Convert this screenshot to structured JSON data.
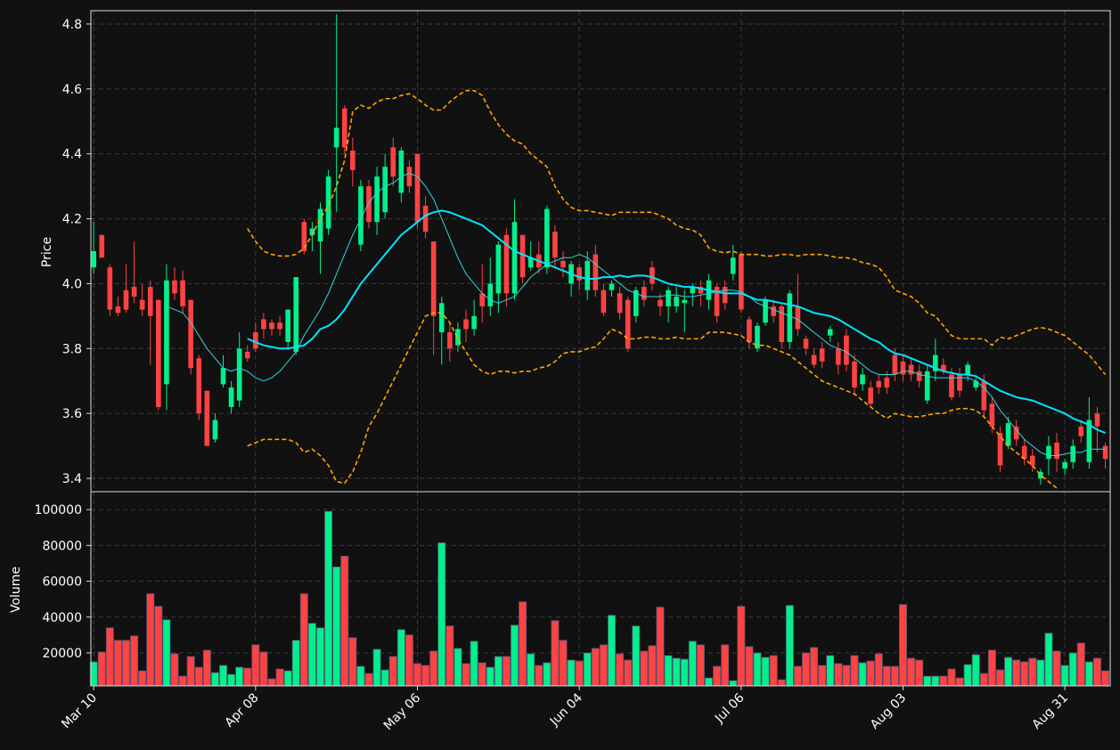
{
  "chart_data": {
    "type": "candlestick",
    "ylabel": "Price",
    "grid": true,
    "up_color": "#00f08c",
    "down_color": "#ff4242",
    "xlim": [
      -0.35,
      125.6
    ],
    "xticks": [
      {
        "value": 0,
        "label": "Mar 10"
      },
      {
        "value": 20,
        "label": "Apr 08"
      },
      {
        "value": 40,
        "label": "May 06"
      },
      {
        "value": 60,
        "label": "Jun 04"
      },
      {
        "value": 80,
        "label": "Jul 06"
      },
      {
        "value": 100,
        "label": "Aug 03"
      },
      {
        "value": 120,
        "label": "Aug 31"
      }
    ],
    "ylim": [
      3.359,
      4.841
    ],
    "yticks": [
      3.4,
      3.6,
      3.8,
      {
        "value": 4,
        "label": "4.0"
      },
      4.2,
      4.4,
      4.6,
      4.8
    ],
    "open": [
      4.05,
      4.15,
      4.05,
      3.93,
      3.98,
      3.99,
      3.95,
      3.99,
      3.95,
      3.69,
      4.01,
      4.01,
      3.95,
      3.77,
      3.67,
      3.52,
      3.69,
      3.62,
      3.64,
      3.79,
      3.85,
      3.89,
      3.88,
      3.88,
      3.82,
      3.79,
      4.19,
      4.15,
      4.13,
      4.17,
      4.42,
      4.54,
      4.41,
      4.12,
      4.3,
      4.19,
      4.22,
      4.42,
      4.28,
      4.36,
      4.4,
      4.24,
      4.13,
      3.85,
      3.85,
      3.81,
      3.89,
      3.86,
      3.97,
      3.93,
      3.97,
      4.15,
      3.97,
      4.15,
      4.05,
      4.09,
      4.05,
      4.16,
      4.07,
      4.0,
      4.05,
      3.98,
      4.09,
      3.98,
      3.98,
      3.97,
      3.95,
      3.9,
      3.99,
      4.05,
      3.95,
      3.93,
      3.93,
      3.94,
      3.97,
      3.99,
      3.95,
      3.99,
      3.99,
      4.03,
      4.09,
      3.89,
      3.8,
      3.88,
      3.93,
      3.93,
      3.82,
      3.93,
      3.83,
      3.78,
      3.8,
      3.84,
      3.8,
      3.84,
      3.76,
      3.69,
      3.68,
      3.7,
      3.71,
      3.78,
      3.76,
      3.75,
      3.73,
      3.64,
      3.73,
      3.75,
      3.72,
      3.72,
      3.72,
      3.68,
      3.7,
      3.63,
      3.54,
      3.5,
      3.56,
      3.5,
      3.47,
      3.4,
      3.46,
      3.51,
      3.43,
      3.45,
      3.56,
      3.45,
      3.6,
      3.5
    ],
    "high": [
      4.19,
      4.15,
      4.06,
      3.96,
      4.06,
      4.13,
      4.0,
      4.01,
      3.95,
      4.06,
      4.05,
      4.04,
      3.95,
      3.78,
      3.67,
      3.6,
      3.78,
      3.7,
      3.85,
      3.81,
      3.88,
      3.91,
      3.89,
      3.9,
      3.92,
      4.02,
      4.2,
      4.19,
      4.25,
      4.35,
      4.83,
      4.55,
      4.45,
      4.32,
      4.32,
      4.36,
      4.4,
      4.45,
      4.42,
      4.38,
      4.4,
      4.27,
      4.13,
      3.96,
      3.88,
      3.88,
      3.92,
      3.95,
      4.06,
      4.08,
      4.13,
      4.17,
      4.26,
      4.15,
      4.13,
      4.13,
      4.24,
      4.18,
      4.1,
      4.07,
      4.06,
      4.1,
      4.12,
      4.0,
      4.01,
      3.99,
      3.96,
      3.99,
      4.01,
      4.07,
      3.97,
      3.99,
      3.99,
      3.98,
      4.0,
      4.01,
      4.03,
      4.0,
      4.01,
      4.12,
      4.1,
      3.9,
      3.88,
      3.96,
      3.95,
      3.94,
      3.98,
      4.03,
      3.84,
      3.8,
      3.82,
      3.87,
      3.82,
      3.86,
      3.78,
      3.74,
      3.7,
      3.72,
      3.73,
      3.8,
      3.78,
      3.77,
      3.75,
      3.75,
      3.83,
      3.77,
      3.74,
      3.74,
      3.76,
      3.71,
      3.72,
      3.65,
      3.56,
      3.59,
      3.58,
      3.52,
      3.49,
      3.43,
      3.53,
      3.54,
      3.46,
      3.52,
      3.58,
      3.65,
      3.62,
      3.51
    ],
    "low": [
      4.03,
      4.08,
      3.9,
      3.9,
      3.91,
      3.94,
      3.9,
      3.75,
      3.61,
      3.61,
      3.95,
      3.91,
      3.72,
      3.58,
      3.5,
      3.51,
      3.68,
      3.6,
      3.62,
      3.76,
      3.79,
      3.83,
      3.84,
      3.84,
      3.8,
      3.78,
      4.09,
      4.1,
      4.03,
      4.15,
      4.22,
      4.4,
      4.3,
      4.1,
      4.17,
      4.15,
      4.2,
      4.3,
      4.25,
      4.28,
      4.17,
      4.14,
      3.78,
      3.75,
      3.76,
      3.79,
      3.82,
      3.84,
      3.88,
      3.9,
      3.91,
      3.93,
      3.95,
      4.0,
      4.04,
      4.03,
      4.03,
      4.05,
      4.02,
      3.96,
      3.98,
      3.95,
      3.96,
      3.9,
      3.96,
      3.89,
      3.79,
      3.88,
      3.93,
      3.98,
      3.9,
      3.88,
      3.91,
      3.85,
      3.93,
      3.93,
      3.92,
      3.88,
      3.92,
      4.01,
      3.91,
      3.8,
      3.79,
      3.87,
      3.88,
      3.8,
      3.8,
      3.84,
      3.78,
      3.74,
      3.74,
      3.82,
      3.72,
      3.73,
      3.66,
      3.67,
      3.62,
      3.66,
      3.66,
      3.7,
      3.7,
      3.7,
      3.68,
      3.63,
      3.7,
      3.72,
      3.64,
      3.65,
      3.7,
      3.67,
      3.59,
      3.54,
      3.42,
      3.49,
      3.5,
      3.44,
      3.42,
      3.38,
      3.41,
      3.42,
      3.41,
      3.43,
      3.51,
      3.43,
      3.48,
      3.43
    ],
    "close": [
      4.1,
      4.08,
      3.92,
      3.91,
      3.92,
      3.96,
      3.92,
      3.9,
      3.62,
      4.01,
      3.97,
      3.93,
      3.74,
      3.6,
      3.5,
      3.58,
      3.74,
      3.68,
      3.8,
      3.77,
      3.8,
      3.86,
      3.86,
      3.86,
      3.92,
      4.02,
      4.1,
      4.17,
      4.23,
      4.33,
      4.48,
      4.42,
      4.35,
      4.3,
      4.19,
      4.33,
      4.36,
      4.33,
      4.41,
      4.3,
      4.19,
      4.16,
      3.9,
      3.94,
      3.8,
      3.86,
      3.86,
      3.9,
      3.93,
      4.0,
      4.12,
      3.97,
      4.19,
      4.02,
      4.08,
      4.05,
      4.23,
      4.08,
      4.05,
      4.06,
      4.01,
      4.07,
      3.98,
      3.91,
      4.0,
      3.91,
      3.8,
      3.98,
      3.95,
      4.0,
      3.93,
      3.98,
      3.96,
      3.95,
      3.99,
      3.97,
      4.01,
      3.9,
      3.94,
      4.08,
      3.92,
      3.82,
      3.87,
      3.95,
      3.9,
      3.82,
      3.97,
      3.86,
      3.8,
      3.75,
      3.76,
      3.86,
      3.75,
      3.75,
      3.68,
      3.72,
      3.63,
      3.68,
      3.68,
      3.72,
      3.72,
      3.72,
      3.7,
      3.73,
      3.78,
      3.73,
      3.65,
      3.67,
      3.75,
      3.7,
      3.61,
      3.56,
      3.44,
      3.57,
      3.52,
      3.46,
      3.44,
      3.42,
      3.5,
      3.46,
      3.45,
      3.5,
      3.53,
      3.58,
      3.56,
      3.46
    ],
    "lines": [
      {
        "color": "#30d8e0",
        "style": "thin",
        "values": [
          null,
          null,
          null,
          null,
          null,
          null,
          null,
          null,
          null,
          3.93,
          3.92,
          3.91,
          3.88,
          3.84,
          3.8,
          3.77,
          3.74,
          3.73,
          3.74,
          3.73,
          3.71,
          3.7,
          3.71,
          3.73,
          3.76,
          3.79,
          3.84,
          3.88,
          3.92,
          3.97,
          4.03,
          4.09,
          4.15,
          4.2,
          4.25,
          4.28,
          4.3,
          4.31,
          4.33,
          4.34,
          4.33,
          4.3,
          4.26,
          4.2,
          4.14,
          4.08,
          4.03,
          4.0,
          3.97,
          3.95,
          3.94,
          3.95,
          3.96,
          3.99,
          4.02,
          4.04,
          4.06,
          4.07,
          4.08,
          4.08,
          4.09,
          4.08,
          4.06,
          4.04,
          4.02,
          4.0,
          3.98,
          3.97,
          3.96,
          3.96,
          3.96,
          3.965,
          3.965,
          3.96,
          3.96,
          3.965,
          3.97,
          3.975,
          3.98,
          3.98,
          3.975,
          3.96,
          3.94,
          3.93,
          3.92,
          3.91,
          3.9,
          3.89,
          3.87,
          3.85,
          3.83,
          3.81,
          3.8,
          3.79,
          3.77,
          3.75,
          3.73,
          3.72,
          3.72,
          3.72,
          3.73,
          3.73,
          3.72,
          3.715,
          3.71,
          3.71,
          3.71,
          3.71,
          3.71,
          3.7,
          3.68,
          3.65,
          3.61,
          3.58,
          3.55,
          3.52,
          3.5,
          3.48,
          3.47,
          3.47,
          3.475,
          3.48,
          3.48,
          3.49,
          3.49,
          3.49
        ]
      },
      {
        "color": "#00e5ff",
        "style": "thick",
        "values": [
          null,
          null,
          null,
          null,
          null,
          null,
          null,
          null,
          null,
          null,
          null,
          null,
          null,
          null,
          null,
          null,
          null,
          null,
          null,
          3.83,
          3.82,
          3.81,
          3.805,
          3.8,
          3.8,
          3.805,
          3.81,
          3.83,
          3.86,
          3.87,
          3.89,
          3.92,
          3.96,
          4.0,
          4.03,
          4.06,
          4.09,
          4.12,
          4.15,
          4.17,
          4.19,
          4.21,
          4.22,
          4.225,
          4.22,
          4.21,
          4.2,
          4.19,
          4.18,
          4.16,
          4.14,
          4.12,
          4.1,
          4.09,
          4.08,
          4.07,
          4.06,
          4.05,
          4.04,
          4.03,
          4.02,
          4.015,
          4.015,
          4.02,
          4.02,
          4.025,
          4.02,
          4.025,
          4.025,
          4.02,
          4.01,
          4.0,
          3.995,
          3.99,
          3.99,
          3.985,
          3.98,
          3.975,
          3.97,
          3.97,
          3.97,
          3.96,
          3.95,
          3.95,
          3.945,
          3.94,
          3.935,
          3.93,
          3.92,
          3.91,
          3.905,
          3.9,
          3.89,
          3.875,
          3.86,
          3.845,
          3.83,
          3.82,
          3.8,
          3.785,
          3.78,
          3.77,
          3.76,
          3.75,
          3.74,
          3.73,
          3.725,
          3.72,
          3.72,
          3.715,
          3.7,
          3.685,
          3.67,
          3.66,
          3.65,
          3.645,
          3.64,
          3.63,
          3.62,
          3.61,
          3.6,
          3.585,
          3.575,
          3.565,
          3.55,
          3.54
        ]
      },
      {
        "color": "#ffa500",
        "style": "dashed",
        "values": [
          null,
          null,
          null,
          null,
          null,
          null,
          null,
          null,
          null,
          null,
          null,
          null,
          null,
          null,
          null,
          null,
          null,
          null,
          null,
          4.17,
          4.13,
          4.1,
          4.09,
          4.085,
          4.085,
          4.09,
          4.11,
          4.15,
          4.2,
          4.24,
          4.3,
          4.38,
          4.53,
          4.55,
          4.54,
          4.56,
          4.57,
          4.57,
          4.58,
          4.585,
          4.57,
          4.55,
          4.535,
          4.535,
          4.56,
          4.58,
          4.595,
          4.595,
          4.58,
          4.53,
          4.49,
          4.46,
          4.44,
          4.43,
          4.4,
          4.38,
          4.36,
          4.3,
          4.26,
          4.235,
          4.225,
          4.225,
          4.22,
          4.215,
          4.21,
          4.22,
          4.22,
          4.22,
          4.22,
          4.22,
          4.21,
          4.2,
          4.18,
          4.17,
          4.165,
          4.15,
          4.11,
          4.1,
          4.095,
          4.1,
          4.09,
          4.09,
          4.09,
          4.085,
          4.085,
          4.09,
          4.09,
          4.085,
          4.09,
          4.09,
          4.09,
          4.085,
          4.08,
          4.08,
          4.075,
          4.065,
          4.06,
          4.05,
          4.02,
          3.98,
          3.97,
          3.96,
          3.94,
          3.91,
          3.9,
          3.87,
          3.84,
          3.83,
          3.83,
          3.83,
          3.83,
          3.81,
          3.835,
          3.83,
          3.84,
          3.85,
          3.86,
          3.865,
          3.86,
          3.85,
          3.84,
          3.82,
          3.8,
          3.78,
          3.75,
          3.72
        ]
      },
      {
        "color": "#ffa500",
        "style": "dashed",
        "values": [
          null,
          null,
          null,
          null,
          null,
          null,
          null,
          null,
          null,
          null,
          null,
          null,
          null,
          null,
          null,
          null,
          null,
          null,
          null,
          3.5,
          3.51,
          3.52,
          3.52,
          3.52,
          3.52,
          3.51,
          3.48,
          3.49,
          3.47,
          3.44,
          3.39,
          3.385,
          3.42,
          3.48,
          3.56,
          3.6,
          3.65,
          3.7,
          3.75,
          3.8,
          3.85,
          3.9,
          3.91,
          3.91,
          3.88,
          3.83,
          3.79,
          3.75,
          3.73,
          3.72,
          3.73,
          3.73,
          3.725,
          3.73,
          3.73,
          3.74,
          3.745,
          3.76,
          3.785,
          3.79,
          3.79,
          3.8,
          3.805,
          3.83,
          3.86,
          3.85,
          3.83,
          3.83,
          3.835,
          3.835,
          3.83,
          3.83,
          3.835,
          3.83,
          3.83,
          3.83,
          3.85,
          3.85,
          3.85,
          3.845,
          3.84,
          3.82,
          3.81,
          3.81,
          3.8,
          3.79,
          3.78,
          3.76,
          3.74,
          3.72,
          3.7,
          3.69,
          3.68,
          3.67,
          3.66,
          3.64,
          3.62,
          3.6,
          3.585,
          3.6,
          3.595,
          3.59,
          3.59,
          3.595,
          3.6,
          3.6,
          3.61,
          3.615,
          3.615,
          3.61,
          3.59,
          3.56,
          3.53,
          3.5,
          3.48,
          3.46,
          3.44,
          3.41,
          3.39,
          3.37,
          null,
          null,
          null,
          null,
          null,
          null
        ]
      }
    ],
    "volume": {
      "ylabel": "Volume",
      "ylim": [
        1600,
        110000
      ],
      "yticks": [
        20000,
        40000,
        60000,
        80000,
        100000
      ],
      "values": [
        15000,
        20500,
        34000,
        27000,
        27000,
        29500,
        10000,
        53000,
        46000,
        38500,
        19500,
        7000,
        18000,
        12000,
        21500,
        9000,
        13000,
        8000,
        12000,
        11500,
        24500,
        20500,
        5500,
        11000,
        10000,
        27000,
        53000,
        36500,
        34000,
        99000,
        68000,
        74000,
        28500,
        12500,
        8500,
        22000,
        10500,
        18000,
        33000,
        30000,
        14000,
        13000,
        21000,
        81500,
        35000,
        22500,
        14000,
        26500,
        14500,
        12000,
        18000,
        18000,
        35500,
        48500,
        19500,
        13000,
        14500,
        38000,
        27000,
        16000,
        15500,
        20000,
        22500,
        24500,
        41000,
        19500,
        16000,
        35000,
        21000,
        24000,
        45500,
        18500,
        17000,
        16500,
        26500,
        24500,
        6000,
        12500,
        24500,
        4500,
        46000,
        23500,
        20000,
        17500,
        18500,
        5000,
        46500,
        12500,
        20000,
        23000,
        13000,
        18500,
        14000,
        13000,
        18500,
        14500,
        15500,
        19500,
        12500,
        12500,
        47000,
        17000,
        16000,
        7000,
        7000,
        7000,
        11000,
        6000,
        13500,
        19000,
        8500,
        21500,
        10500,
        17500,
        16000,
        15000,
        17000,
        16000,
        31000,
        21000,
        13000,
        20000,
        25500,
        15000,
        17000,
        10000
      ]
    }
  }
}
